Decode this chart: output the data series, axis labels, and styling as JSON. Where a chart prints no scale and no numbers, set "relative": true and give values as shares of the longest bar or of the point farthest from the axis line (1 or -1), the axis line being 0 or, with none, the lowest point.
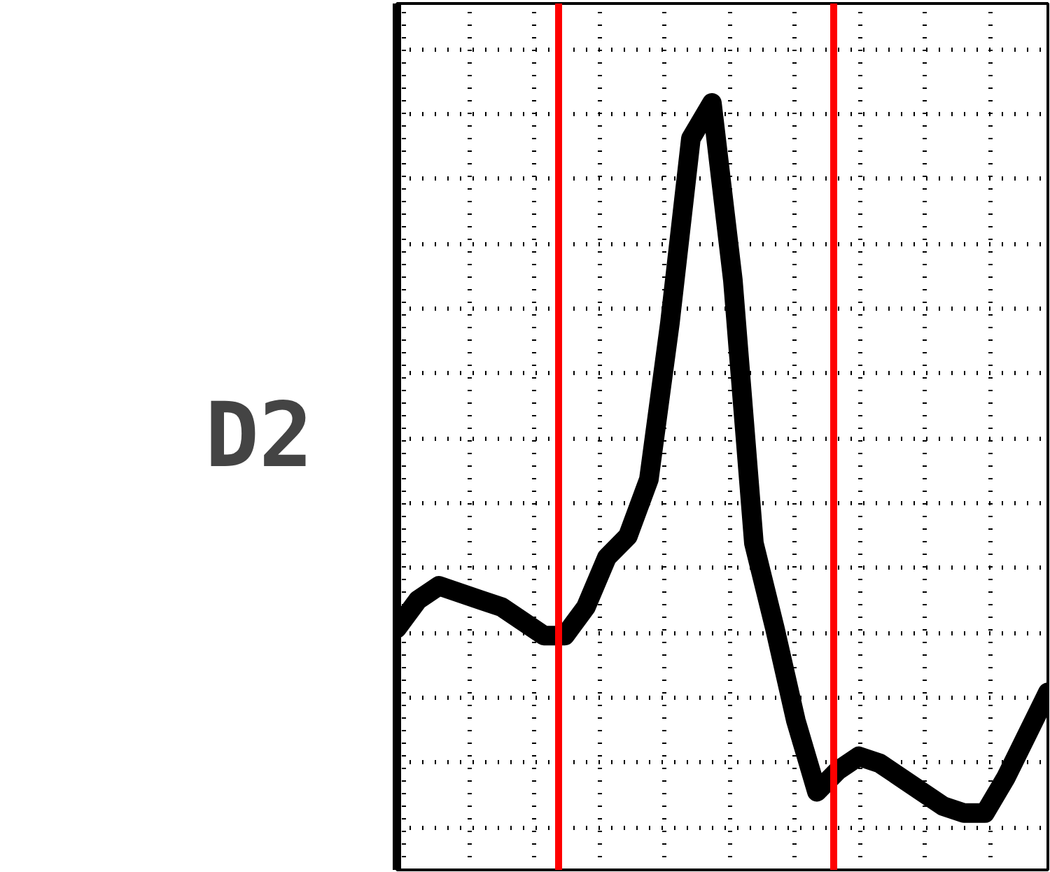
{
  "chart_data": {
    "type": "line",
    "relative": true,
    "ylabel": "D2",
    "grid": true,
    "line_style": "solid",
    "tick_labels": false,
    "categories": [
      null,
      null,
      null,
      null,
      null,
      null,
      null,
      null,
      null,
      null,
      null,
      null,
      null,
      null,
      null,
      null,
      null,
      null,
      null,
      null,
      null,
      null,
      null,
      null,
      null,
      null,
      null,
      null,
      null,
      null,
      null,
      null
    ],
    "series": [
      {
        "color": "#000000",
        "values": [
          0.26,
          0.3,
          0.32,
          0.31,
          0.3,
          0.29,
          0.27,
          0.25,
          0.25,
          0.29,
          0.36,
          0.39,
          0.47,
          0.69,
          0.95,
          1.0,
          0.75,
          0.38,
          0.26,
          0.13,
          0.03,
          0.06,
          0.08,
          0.07,
          0.05,
          0.03,
          0.01,
          0.0,
          0.0,
          0.05,
          0.11,
          0.17
        ]
      }
    ]
  }
}
